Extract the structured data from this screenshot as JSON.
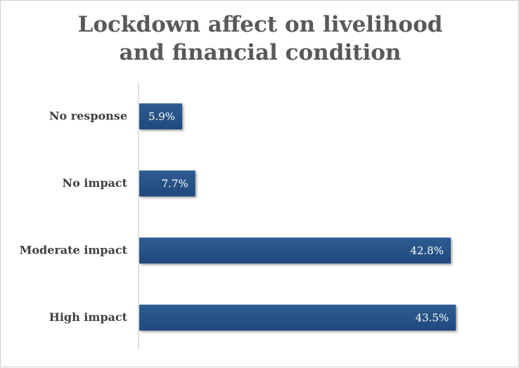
{
  "chart_data": {
    "type": "bar",
    "orientation": "horizontal",
    "title_lines": [
      "Lockdown affect on livelihood",
      "and financial condition"
    ],
    "categories": [
      "No response",
      "No impact",
      "Moderate impact",
      "High impact"
    ],
    "values": [
      5.9,
      7.7,
      42.8,
      43.5
    ],
    "value_labels": [
      "5.9%",
      "7.7%",
      "42.8%",
      "43.5%"
    ],
    "xlabel": "",
    "ylabel": "",
    "xlim": [
      0,
      50
    ],
    "grid": false,
    "legend": "none",
    "colors": {
      "bar": "#1F497D",
      "bar_light": "#2E5C91",
      "axis": "#BFBFBF",
      "title": "#595959",
      "label": "#404040"
    }
  }
}
